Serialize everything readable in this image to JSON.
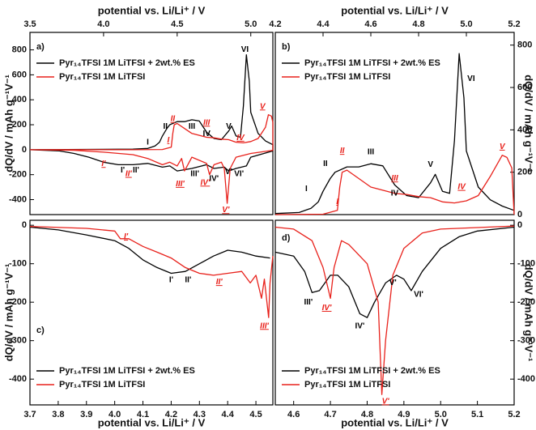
{
  "chart_data": [
    {
      "type": "line",
      "label": "a)",
      "x_label": "potential vs. Li/Li⁺ / V",
      "y_label": "dQ/dV / mAh g⁻¹V⁻¹",
      "xlim": [
        3.5,
        5.15
      ],
      "xticks": [
        {
          "value": 3.5,
          "label": "3.5"
        },
        {
          "value": 4.0,
          "label": "4.0"
        },
        4.5,
        {
          "value": 5.0,
          "label": "5.0"
        }
      ],
      "ylim": [
        -520,
        940
      ],
      "yticks": [
        -400,
        -200,
        0,
        200,
        400,
        600,
        800
      ],
      "legend": "upper left",
      "series": [
        {
          "name": "Pyr₁₄TFSI 1M LiTFSI + 2wt.% ES",
          "color": "#000000",
          "x": [
            3.5,
            4.0,
            4.2,
            4.3,
            4.35,
            4.38,
            4.4,
            4.43,
            4.45,
            4.5,
            4.55,
            4.6,
            4.65,
            4.7,
            4.75,
            4.8,
            4.85,
            4.87,
            4.9,
            4.93,
            4.95,
            4.97,
            4.99,
            5.0,
            5.05,
            5.1,
            5.15,
            5.15,
            5.0,
            4.97,
            4.9,
            4.85,
            4.82,
            4.75,
            4.7,
            4.6,
            4.5,
            4.45,
            4.4,
            4.3,
            4.2,
            4.1,
            4.0,
            3.9,
            3.8,
            3.7,
            3.5
          ],
          "values": [
            0,
            3,
            5,
            10,
            30,
            60,
            110,
            170,
            200,
            225,
            225,
            240,
            230,
            140,
            90,
            80,
            150,
            190,
            110,
            100,
            350,
            760,
            550,
            300,
            130,
            70,
            40,
            -10,
            -60,
            -130,
            -150,
            -170,
            -140,
            -150,
            -120,
            -150,
            -170,
            -130,
            -140,
            -110,
            -120,
            -120,
            -100,
            -60,
            -30,
            -10,
            0
          ]
        },
        {
          "name": "Pyr₁₄TFSI 1M LiTFSI",
          "color": "#e8211b",
          "x": [
            3.5,
            4.2,
            4.4,
            4.46,
            4.47,
            4.48,
            4.5,
            4.55,
            4.6,
            4.7,
            4.75,
            4.8,
            4.85,
            4.9,
            4.95,
            5.0,
            5.05,
            5.1,
            5.12,
            5.14,
            5.15,
            5.15,
            5.0,
            4.9,
            4.86,
            4.84,
            4.82,
            4.8,
            4.75,
            4.72,
            4.7,
            4.6,
            4.55,
            4.53,
            4.5,
            4.45,
            4.4,
            4.3,
            4.2,
            4.0,
            3.8,
            3.5
          ],
          "values": [
            0,
            0,
            2,
            20,
            130,
            200,
            210,
            170,
            130,
            100,
            95,
            85,
            80,
            60,
            55,
            65,
            90,
            180,
            280,
            270,
            220,
            -5,
            -30,
            -60,
            -150,
            -430,
            -150,
            -100,
            -120,
            -200,
            -110,
            -60,
            -170,
            -70,
            -130,
            -100,
            -120,
            -70,
            -40,
            -20,
            -5,
            0
          ]
        }
      ],
      "annotations": [
        {
          "text": "I",
          "color": "#000000"
        },
        {
          "text": "II",
          "color": "#000000"
        },
        {
          "text": "III",
          "color": "#000000"
        },
        {
          "text": "IV",
          "color": "#000000"
        },
        {
          "text": "V",
          "color": "#000000"
        },
        {
          "text": "VI",
          "color": "#000000"
        },
        {
          "text": "I'",
          "color": "#000000"
        },
        {
          "text": "II'",
          "color": "#000000"
        },
        {
          "text": "III'",
          "color": "#000000"
        },
        {
          "text": "IV'",
          "color": "#000000"
        },
        {
          "text": "V'",
          "color": "#000000"
        },
        {
          "text": "VI'",
          "color": "#000000"
        },
        {
          "text": "I",
          "color": "#e8211b"
        },
        {
          "text": "II",
          "color": "#e8211b"
        },
        {
          "text": "III",
          "color": "#e8211b"
        },
        {
          "text": "IV",
          "color": "#e8211b"
        },
        {
          "text": "V",
          "color": "#e8211b"
        },
        {
          "text": "I'",
          "color": "#e8211b"
        },
        {
          "text": "II'",
          "color": "#e8211b"
        },
        {
          "text": "III'",
          "color": "#e8211b"
        },
        {
          "text": "IV'",
          "color": "#e8211b"
        },
        {
          "text": "V'",
          "color": "#e8211b"
        }
      ]
    },
    {
      "type": "line",
      "label": "b)",
      "x_label": "potential vs. Li/Li⁺ / V",
      "y_label": "dQ/dV / mAh g⁻¹V⁻¹",
      "xlim": [
        4.2,
        5.2
      ],
      "xticks": [
        4.2,
        4.4,
        4.6,
        4.8,
        {
          "value": 5.0,
          "label": "5.0"
        },
        5.2
      ],
      "ylim": [
        0,
        860
      ],
      "yticks": [
        0,
        200,
        400,
        600,
        800
      ],
      "legend": "upper left",
      "series": [
        {
          "name": "Pyr₁₄TFSI 1M LiTFSI + 2wt.% ES",
          "color": "#000000",
          "x": [
            4.2,
            4.3,
            4.35,
            4.38,
            4.4,
            4.43,
            4.45,
            4.5,
            4.55,
            4.6,
            4.65,
            4.7,
            4.75,
            4.8,
            4.85,
            4.87,
            4.9,
            4.93,
            4.95,
            4.97,
            4.99,
            5.0,
            5.05,
            5.1,
            5.15,
            5.2
          ],
          "values": [
            5,
            10,
            30,
            60,
            110,
            170,
            200,
            225,
            225,
            240,
            230,
            140,
            90,
            80,
            150,
            190,
            110,
            100,
            350,
            760,
            550,
            300,
            130,
            70,
            40,
            20
          ]
        },
        {
          "name": "Pyr₁₄TFSI 1M LiTFSI",
          "color": "#e8211b",
          "x": [
            4.2,
            4.4,
            4.46,
            4.47,
            4.48,
            4.5,
            4.55,
            4.6,
            4.7,
            4.75,
            4.8,
            4.85,
            4.9,
            4.95,
            5.0,
            5.05,
            5.1,
            5.15,
            5.17,
            5.19,
            5.2
          ],
          "values": [
            0,
            2,
            20,
            130,
            200,
            210,
            170,
            130,
            100,
            95,
            85,
            80,
            60,
            55,
            65,
            90,
            180,
            280,
            270,
            220,
            0
          ]
        }
      ],
      "annotations": [
        {
          "text": "I",
          "color": "#000000"
        },
        {
          "text": "II",
          "color": "#000000"
        },
        {
          "text": "III",
          "color": "#000000"
        },
        {
          "text": "IV",
          "color": "#000000"
        },
        {
          "text": "V",
          "color": "#000000"
        },
        {
          "text": "VI",
          "color": "#000000"
        },
        {
          "text": "I",
          "color": "#e8211b"
        },
        {
          "text": "II",
          "color": "#e8211b"
        },
        {
          "text": "III",
          "color": "#e8211b"
        },
        {
          "text": "IV",
          "color": "#e8211b"
        },
        {
          "text": "V",
          "color": "#e8211b"
        }
      ]
    },
    {
      "type": "line",
      "label": "c)",
      "x_label": "potential vs. Li/Li⁺ / V",
      "y_label": "dQ/dV / mAh g⁻¹V⁻¹",
      "xlim": [
        3.7,
        4.56
      ],
      "xticks": [
        3.7,
        3.8,
        3.9,
        {
          "value": 4.0,
          "label": "4.0"
        },
        4.1,
        4.2,
        4.3,
        4.4,
        4.5
      ],
      "ylim": [
        -467,
        13
      ],
      "yticks": [
        0,
        -100,
        -200,
        -300,
        -400
      ],
      "legend": "lower left",
      "series": [
        {
          "name": "Pyr₁₄TFSI 1M LiTFSI + 2wt.% ES",
          "color": "#000000",
          "x": [
            3.7,
            3.8,
            3.9,
            4.0,
            4.05,
            4.1,
            4.15,
            4.2,
            4.25,
            4.3,
            4.35,
            4.4,
            4.45,
            4.5,
            4.55
          ],
          "values": [
            -5,
            -12,
            -25,
            -40,
            -60,
            -90,
            -110,
            -125,
            -120,
            -100,
            -80,
            -65,
            -70,
            -80,
            -85
          ]
        },
        {
          "name": "Pyr₁₄TFSI 1M LiTFSI",
          "color": "#e8211b",
          "x": [
            3.7,
            3.9,
            4.0,
            4.02,
            4.05,
            4.1,
            4.15,
            4.2,
            4.25,
            4.3,
            4.35,
            4.4,
            4.45,
            4.48,
            4.5,
            4.52,
            4.53,
            4.545,
            4.55,
            4.56
          ],
          "values": [
            -3,
            -8,
            -15,
            -35,
            -35,
            -55,
            -70,
            -85,
            -110,
            -125,
            -130,
            -125,
            -120,
            -150,
            -130,
            -190,
            -140,
            -240,
            -150,
            -80
          ]
        }
      ],
      "annotations": [
        {
          "text": "I'",
          "color": "#000000"
        },
        {
          "text": "II'",
          "color": "#000000"
        },
        {
          "text": "I'",
          "color": "#e8211b"
        },
        {
          "text": "II'",
          "color": "#e8211b"
        },
        {
          "text": "III'",
          "color": "#e8211b"
        }
      ]
    },
    {
      "type": "line",
      "label": "d)",
      "x_label": "potential vs. Li/Li⁺ / V",
      "y_label": "dQ/dV / mAh g⁻¹V⁻¹",
      "xlim": [
        4.55,
        5.2
      ],
      "xticks": [
        4.6,
        4.7,
        4.8,
        4.9,
        {
          "value": 5.0,
          "label": "5.0"
        },
        5.1,
        5.2
      ],
      "ylim": [
        -467,
        13
      ],
      "yticks": [
        0,
        -100,
        -200,
        -300,
        -400
      ],
      "legend": "lower left",
      "series": [
        {
          "name": "Pyr₁₄TFSI 1M LiTFSI + 2wt.% ES",
          "color": "#000000",
          "x": [
            4.55,
            4.6,
            4.63,
            4.65,
            4.67,
            4.7,
            4.72,
            4.75,
            4.78,
            4.8,
            4.82,
            4.85,
            4.88,
            4.9,
            4.92,
            4.95,
            5.0,
            5.05,
            5.1,
            5.2
          ],
          "values": [
            -70,
            -80,
            -120,
            -175,
            -170,
            -130,
            -130,
            -160,
            -230,
            -240,
            -200,
            -150,
            -130,
            -140,
            -170,
            -120,
            -60,
            -30,
            -15,
            -5
          ]
        },
        {
          "name": "Pyr₁₄TFSI 1M LiTFSI",
          "color": "#e8211b",
          "x": [
            4.55,
            4.6,
            4.65,
            4.68,
            4.7,
            4.71,
            4.73,
            4.75,
            4.8,
            4.83,
            4.84,
            4.85,
            4.87,
            4.9,
            4.95,
            5.0,
            5.2
          ],
          "values": [
            -5,
            -10,
            -40,
            -110,
            -190,
            -110,
            -40,
            -50,
            -100,
            -200,
            -440,
            -300,
            -130,
            -60,
            -20,
            -10,
            -2
          ]
        }
      ],
      "annotations": [
        {
          "text": "III'",
          "color": "#000000"
        },
        {
          "text": "IV'",
          "color": "#000000"
        },
        {
          "text": "V'",
          "color": "#000000"
        },
        {
          "text": "VI'",
          "color": "#000000"
        },
        {
          "text": "IV'",
          "color": "#e8211b"
        },
        {
          "text": "V'",
          "color": "#e8211b"
        }
      ]
    }
  ]
}
